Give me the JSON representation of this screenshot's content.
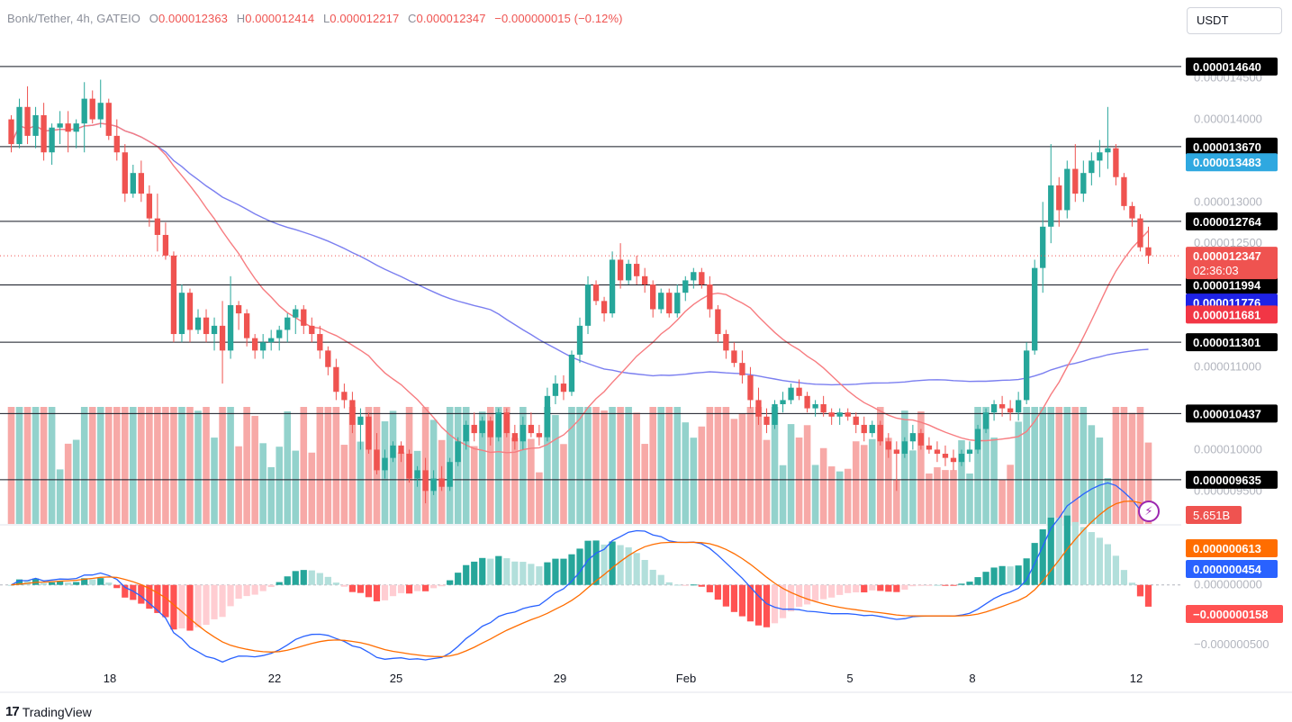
{
  "header": {
    "symbol": "Bonk/Tether, 4h, GATEIO",
    "o_label": "O",
    "o_value": "0.000012363",
    "h_label": "H",
    "h_value": "0.000012414",
    "l_label": "L",
    "l_value": "0.000012217",
    "c_label": "C",
    "c_value": "0.000012347",
    "change": "−0.000000015 (−0.12%)"
  },
  "currency_button": "USDT",
  "footer": {
    "logo": "17",
    "brand": "TradingView"
  },
  "colors": {
    "up": "#26a69a",
    "down": "#ef5350",
    "ma_fast": "#f77c80",
    "ma_slow": "#7b7ff0",
    "macd": "#2962ff",
    "signal": "#ff6d00"
  },
  "chart_data": [
    {
      "type": "candlestick",
      "title": "Bonk/Tether, 4h, GATEIO",
      "x_ticks": [
        "18",
        "22",
        "25",
        "29",
        "Feb",
        "5",
        "8",
        "12"
      ],
      "y_ticks": [
        "0.000014500",
        "0.000014000",
        "0.000013000",
        "0.000012500",
        "0.000011000",
        "0.000010000",
        "0.000009500"
      ],
      "ylim": [
        9.1e-06,
        1.49e-05
      ],
      "horizontal_levels": [
        "0.000014640",
        "0.000013670",
        "0.000012764",
        "0.000011994",
        "0.000011301",
        "0.000010437",
        "0.000009635"
      ],
      "moving_averages": [
        {
          "value_label": "0.000013483",
          "color": "#2fa8e0"
        },
        {
          "value_label": "0.000011776",
          "color": "#1e22e6"
        },
        {
          "value_label": "0.000011681",
          "color": "#f23645"
        }
      ],
      "last_price": {
        "value": "0.000012347",
        "countdown": "02:36:03"
      },
      "volume_label": "5.651B",
      "candles": [
        [
          1.4e-05,
          1.405e-05,
          1.36e-05,
          1.37e-05
        ],
        [
          1.37e-05,
          1.425e-05,
          1.365e-05,
          1.415e-05
        ],
        [
          1.415e-05,
          1.44e-05,
          1.37e-05,
          1.38e-05
        ],
        [
          1.38e-05,
          1.415e-05,
          1.365e-05,
          1.405e-05
        ],
        [
          1.405e-05,
          1.42e-05,
          1.35e-05,
          1.36e-05
        ],
        [
          1.36e-05,
          1.395e-05,
          1.345e-05,
          1.39e-05
        ],
        [
          1.39e-05,
          1.41e-05,
          1.37e-05,
          1.395e-05
        ],
        [
          1.395e-05,
          1.41e-05,
          1.36e-05,
          1.385e-05
        ],
        [
          1.385e-05,
          1.4e-05,
          1.365e-05,
          1.395e-05
        ],
        [
          1.395e-05,
          1.445e-05,
          1.36e-05,
          1.425e-05
        ],
        [
          1.425e-05,
          1.435e-05,
          1.395e-05,
          1.4e-05
        ],
        [
          1.4e-05,
          1.448e-05,
          1.39e-05,
          1.42e-05
        ],
        [
          1.42e-05,
          1.425e-05,
          1.375e-05,
          1.38e-05
        ],
        [
          1.38e-05,
          1.4e-05,
          1.35e-05,
          1.36e-05
        ],
        [
          1.36e-05,
          1.37e-05,
          1.3e-05,
          1.31e-05
        ],
        [
          1.31e-05,
          1.345e-05,
          1.305e-05,
          1.335e-05
        ],
        [
          1.335e-05,
          1.35e-05,
          1.3e-05,
          1.31e-05
        ],
        [
          1.31e-05,
          1.32e-05,
          1.27e-05,
          1.28e-05
        ],
        [
          1.28e-05,
          1.31e-05,
          1.24e-05,
          1.26e-05
        ],
        [
          1.26e-05,
          1.275e-05,
          1.23e-05,
          1.235e-05
        ],
        [
          1.235e-05,
          1.24e-05,
          1.13e-05,
          1.14e-05
        ],
        [
          1.14e-05,
          1.2e-05,
          1.13e-05,
          1.19e-05
        ],
        [
          1.19e-05,
          1.195e-05,
          1.13e-05,
          1.145e-05
        ],
        [
          1.145e-05,
          1.17e-05,
          1.14e-05,
          1.16e-05
        ],
        [
          1.16e-05,
          1.17e-05,
          1.13e-05,
          1.14e-05
        ],
        [
          1.14e-05,
          1.16e-05,
          1.12e-05,
          1.15e-05
        ],
        [
          1.15e-05,
          1.18e-05,
          1.08e-05,
          1.12e-05
        ],
        [
          1.12e-05,
          1.21e-05,
          1.11e-05,
          1.175e-05
        ],
        [
          1.175e-05,
          1.18e-05,
          1.145e-05,
          1.165e-05
        ],
        [
          1.165e-05,
          1.17e-05,
          1.125e-05,
          1.135e-05
        ],
        [
          1.135e-05,
          1.14e-05,
          1.11e-05,
          1.12e-05
        ],
        [
          1.12e-05,
          1.14e-05,
          1.11e-05,
          1.13e-05
        ],
        [
          1.13e-05,
          1.145e-05,
          1.12e-05,
          1.135e-05
        ],
        [
          1.135e-05,
          1.15e-05,
          1.12e-05,
          1.145e-05
        ],
        [
          1.145e-05,
          1.165e-05,
          1.13e-05,
          1.16e-05
        ],
        [
          1.16e-05,
          1.175e-05,
          1.14e-05,
          1.17e-05
        ],
        [
          1.17e-05,
          1.175e-05,
          1.14e-05,
          1.15e-05
        ],
        [
          1.15e-05,
          1.16e-05,
          1.13e-05,
          1.14e-05
        ],
        [
          1.14e-05,
          1.15e-05,
          1.11e-05,
          1.12e-05
        ],
        [
          1.12e-05,
          1.125e-05,
          1.09e-05,
          1.1e-05
        ],
        [
          1.1e-05,
          1.11e-05,
          1.06e-05,
          1.07e-05
        ],
        [
          1.07e-05,
          1.08e-05,
          1.05e-05,
          1.06e-05
        ],
        [
          1.06e-05,
          1.07e-05,
          1.02e-05,
          1.03e-05
        ],
        [
          1.03e-05,
          1.05e-05,
          1e-05,
          1.04e-05
        ],
        [
          1.04e-05,
          1.045e-05,
          9.95e-06,
          1e-05
        ],
        [
          1e-05,
          1.02e-05,
          9.7e-06,
          9.75e-06
        ],
        [
          9.75e-06,
          1e-05,
          9.65e-06,
          9.9e-06
        ],
        [
          9.9e-06,
          1.01e-05,
          9.85e-06,
          1.005e-05
        ],
        [
          1.005e-05,
          1.01e-05,
          9.85e-06,
          9.95e-06
        ],
        [
          9.95e-06,
          1e-05,
          9.6e-06,
          9.65e-06
        ],
        [
          9.65e-06,
          9.8e-06,
          9.55e-06,
          9.75e-06
        ],
        [
          9.75e-06,
          9.9e-06,
          9.35e-06,
          9.5e-06
        ],
        [
          9.5e-06,
          9.75e-06,
          9.45e-06,
          9.65e-06
        ],
        [
          9.65e-06,
          9.8e-06,
          9.5e-06,
          9.55e-06
        ],
        [
          9.55e-06,
          9.9e-06,
          9.5e-06,
          9.85e-06
        ],
        [
          9.85e-06,
          1.015e-05,
          9.8e-06,
          1.01e-05
        ],
        [
          1.01e-05,
          1.035e-05,
          1e-05,
          1.03e-05
        ],
        [
          1.03e-05,
          1.045e-05,
          1.01e-05,
          1.02e-05
        ],
        [
          1.02e-05,
          1.04e-05,
          1.015e-05,
          1.035e-05
        ],
        [
          1.035e-05,
          1.04e-05,
          1.005e-05,
          1.015e-05
        ],
        [
          1.015e-05,
          1.05e-05,
          1.01e-05,
          1.045e-05
        ],
        [
          1.045e-05,
          1.05e-05,
          1.015e-05,
          1.02e-05
        ],
        [
          1.02e-05,
          1.03e-05,
          1e-05,
          1.01e-05
        ],
        [
          1.01e-05,
          1.04e-05,
          1e-05,
          1.03e-05
        ],
        [
          1.03e-05,
          1.045e-05,
          1.015e-05,
          1.02e-05
        ],
        [
          1.02e-05,
          1.03e-05,
          1.005e-05,
          1.015e-05
        ],
        [
          1.015e-05,
          1.075e-05,
          1.01e-05,
          1.065e-05
        ],
        [
          1.065e-05,
          1.09e-05,
          1.055e-05,
          1.08e-05
        ],
        [
          1.08e-05,
          1.09e-05,
          1.06e-05,
          1.07e-05
        ],
        [
          1.07e-05,
          1.12e-05,
          1.065e-05,
          1.115e-05
        ],
        [
          1.115e-05,
          1.16e-05,
          1.105e-05,
          1.15e-05
        ],
        [
          1.15e-05,
          1.21e-05,
          1.14e-05,
          1.2e-05
        ],
        [
          1.2e-05,
          1.205e-05,
          1.175e-05,
          1.18e-05
        ],
        [
          1.18e-05,
          1.185e-05,
          1.155e-05,
          1.165e-05
        ],
        [
          1.165e-05,
          1.24e-05,
          1.16e-05,
          1.23e-05
        ],
        [
          1.23e-05,
          1.25e-05,
          1.195e-05,
          1.205e-05
        ],
        [
          1.205e-05,
          1.23e-05,
          1.2e-05,
          1.225e-05
        ],
        [
          1.225e-05,
          1.235e-05,
          1.2e-05,
          1.21e-05
        ],
        [
          1.21e-05,
          1.22e-05,
          1.19e-05,
          1.2e-05
        ],
        [
          1.2e-05,
          1.205e-05,
          1.16e-05,
          1.17e-05
        ],
        [
          1.17e-05,
          1.195e-05,
          1.165e-05,
          1.19e-05
        ],
        [
          1.19e-05,
          1.195e-05,
          1.16e-05,
          1.165e-05
        ],
        [
          1.165e-05,
          1.2e-05,
          1.16e-05,
          1.19e-05
        ],
        [
          1.19e-05,
          1.21e-05,
          1.18e-05,
          1.205e-05
        ],
        [
          1.205e-05,
          1.22e-05,
          1.195e-05,
          1.215e-05
        ],
        [
          1.215e-05,
          1.22e-05,
          1.195e-05,
          1.2e-05
        ],
        [
          1.2e-05,
          1.21e-05,
          1.16e-05,
          1.17e-05
        ],
        [
          1.17e-05,
          1.175e-05,
          1.13e-05,
          1.14e-05
        ],
        [
          1.14e-05,
          1.145e-05,
          1.11e-05,
          1.12e-05
        ],
        [
          1.12e-05,
          1.13e-05,
          1.1e-05,
          1.105e-05
        ],
        [
          1.105e-05,
          1.12e-05,
          1.08e-05,
          1.09e-05
        ],
        [
          1.09e-05,
          1.1e-05,
          1.05e-05,
          1.06e-05
        ],
        [
          1.06e-05,
          1.075e-05,
          1.03e-05,
          1.04e-05
        ],
        [
          1.04e-05,
          1.05e-05,
          1.02e-05,
          1.03e-05
        ],
        [
          1.03e-05,
          1.06e-05,
          1.025e-05,
          1.055e-05
        ],
        [
          1.055e-05,
          1.07e-05,
          1.045e-05,
          1.06e-05
        ],
        [
          1.06e-05,
          1.08e-05,
          1.055e-05,
          1.075e-05
        ],
        [
          1.075e-05,
          1.085e-05,
          1.06e-05,
          1.065e-05
        ],
        [
          1.065e-05,
          1.07e-05,
          1.045e-05,
          1.05e-05
        ],
        [
          1.05e-05,
          1.06e-05,
          1.04e-05,
          1.055e-05
        ],
        [
          1.055e-05,
          1.065e-05,
          1.04e-05,
          1.045e-05
        ],
        [
          1.045e-05,
          1.05e-05,
          1.03e-05,
          1.04e-05
        ],
        [
          1.04e-05,
          1.05e-05,
          1.03e-05,
          1.045e-05
        ],
        [
          1.045e-05,
          1.05e-05,
          1.035e-05,
          1.04e-05
        ],
        [
          1.04e-05,
          1.045e-05,
          1.02e-05,
          1.03e-05
        ],
        [
          1.03e-05,
          1.04e-05,
          1.01e-05,
          1.02e-05
        ],
        [
          1.02e-05,
          1.035e-05,
          1.015e-05,
          1.03e-05
        ],
        [
          1.03e-05,
          1.035e-05,
          1.005e-05,
          1.01e-05
        ],
        [
          1.01e-05,
          1.02e-05,
          9.9e-06,
          1e-05
        ],
        [
          1e-05,
          1.01e-05,
          9.5e-06,
          9.95e-06
        ],
        [
          9.95e-06,
          1.015e-05,
          9.9e-06,
          1.01e-05
        ],
        [
          1.01e-05,
          1.03e-05,
          1e-05,
          1.02e-05
        ],
        [
          1.02e-05,
          1.025e-05,
          1e-05,
          1.005e-05
        ],
        [
          1.005e-05,
          1.015e-05,
          9.95e-06,
          1e-05
        ],
        [
          1e-05,
          1.01e-05,
          9.85e-06,
          9.95e-06
        ],
        [
          9.95e-06,
          1.005e-05,
          9.8e-06,
          9.9e-06
        ],
        [
          9.9e-06,
          1e-05,
          9.75e-06,
          9.85e-06
        ],
        [
          9.85e-06,
          1e-05,
          9.8e-06,
          9.95e-06
        ],
        [
          9.95e-06,
          1.01e-05,
          9.85e-06,
          1e-05
        ],
        [
          1e-05,
          1.03e-05,
          9.95e-06,
          1.025e-05
        ],
        [
          1.025e-05,
          1.05e-05,
          1.02e-05,
          1.045e-05
        ],
        [
          1.045e-05,
          1.06e-05,
          1.035e-05,
          1.055e-05
        ],
        [
          1.055e-05,
          1.065e-05,
          1.04e-05,
          1.05e-05
        ],
        [
          1.05e-05,
          1.06e-05,
          1.035e-05,
          1.045e-05
        ],
        [
          1.045e-05,
          1.07e-05,
          1.035e-05,
          1.06e-05
        ],
        [
          1.06e-05,
          1.13e-05,
          1.055e-05,
          1.12e-05
        ],
        [
          1.12e-05,
          1.23e-05,
          1.115e-05,
          1.22e-05
        ],
        [
          1.22e-05,
          1.3e-05,
          1.19e-05,
          1.27e-05
        ],
        [
          1.27e-05,
          1.37e-05,
          1.25e-05,
          1.32e-05
        ],
        [
          1.32e-05,
          1.33e-05,
          1.27e-05,
          1.29e-05
        ],
        [
          1.29e-05,
          1.35e-05,
          1.28e-05,
          1.34e-05
        ],
        [
          1.34e-05,
          1.37e-05,
          1.3e-05,
          1.31e-05
        ],
        [
          1.31e-05,
          1.35e-05,
          1.3e-05,
          1.335e-05
        ],
        [
          1.335e-05,
          1.36e-05,
          1.32e-05,
          1.35e-05
        ],
        [
          1.35e-05,
          1.375e-05,
          1.33e-05,
          1.36e-05
        ],
        [
          1.36e-05,
          1.415e-05,
          1.34e-05,
          1.365e-05
        ],
        [
          1.365e-05,
          1.37e-05,
          1.32e-05,
          1.33e-05
        ],
        [
          1.33e-05,
          1.335e-05,
          1.29e-05,
          1.295e-05
        ],
        [
          1.295e-05,
          1.3e-05,
          1.27e-05,
          1.28e-05
        ],
        [
          1.28e-05,
          1.285e-05,
          1.24e-05,
          1.245e-05
        ],
        [
          1.245e-05,
          1.27e-05,
          1.225e-05,
          1.235e-05
        ]
      ]
    },
    {
      "type": "line",
      "title": "",
      "y_ticks": [
        "0.000000000",
        "−0.000000500"
      ],
      "ylim": [
        -6.5e-07,
        4.5e-07
      ],
      "value_labels": {
        "signal": "0.000000613",
        "macd": "0.000000454",
        "histogram": "−0.000000158"
      },
      "series": []
    }
  ]
}
